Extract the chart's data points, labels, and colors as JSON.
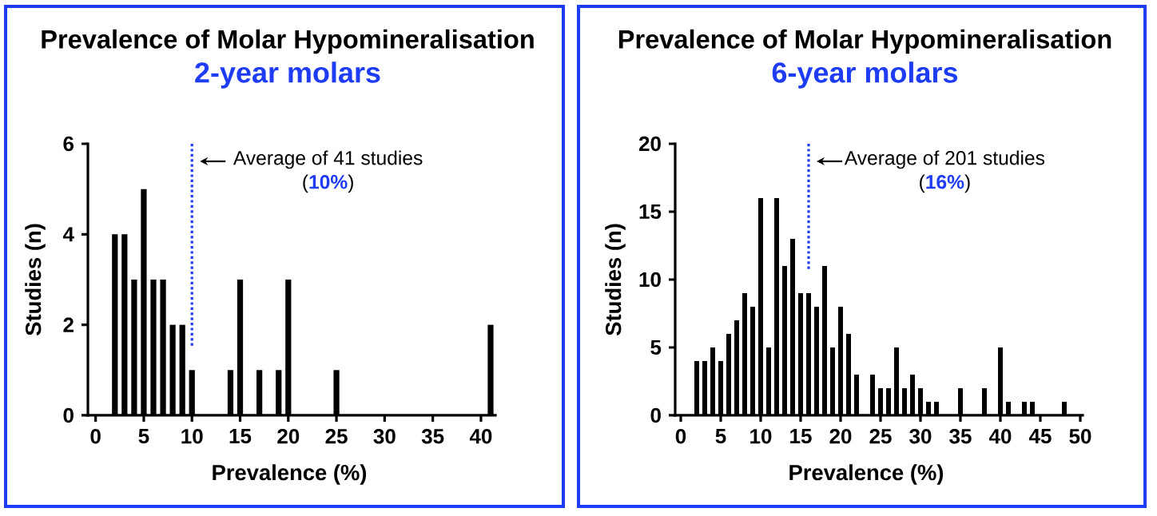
{
  "chart_data": [
    {
      "type": "bar",
      "title": "Prevalence of Molar Hypomineralisation",
      "subtitle": "2-year molars",
      "xlabel": "Prevalence (%)",
      "ylabel": "Studies (n)",
      "x": [
        2,
        3,
        4,
        5,
        6,
        7,
        8,
        9,
        10,
        14,
        15,
        17,
        19,
        20,
        25,
        41
      ],
      "values": [
        4,
        4,
        3,
        5,
        3,
        3,
        2,
        2,
        1,
        1,
        3,
        1,
        1,
        3,
        1,
        2
      ],
      "color": "#000000",
      "xlim": [
        -0.8,
        41.5
      ],
      "xticks": [
        0,
        5,
        10,
        15,
        20,
        25,
        30,
        35,
        40
      ],
      "ylim": [
        0,
        6
      ],
      "yticks": [
        0,
        2,
        4,
        6
      ],
      "ref_lines": [
        {
          "axis": "x",
          "value": 10,
          "label": "Average of 41 studies (**10%**)",
          "color": "#1f3cf5",
          "line_style": "dotted"
        }
      ]
    },
    {
      "type": "bar",
      "title": "Prevalence of Molar Hypomineralisation",
      "subtitle": "6-year molars",
      "xlabel": "Prevalence (%)",
      "ylabel": "Studies (n)",
      "x": [
        2,
        3,
        4,
        5,
        6,
        7,
        8,
        9,
        10,
        11,
        12,
        13,
        14,
        15,
        16,
        17,
        18,
        19,
        20,
        21,
        22,
        24,
        25,
        26,
        27,
        28,
        29,
        30,
        31,
        32,
        35,
        38,
        40,
        41,
        43,
        44,
        48
      ],
      "values": [
        4,
        4,
        5,
        4,
        6,
        7,
        9,
        8,
        16,
        5,
        16,
        11,
        13,
        9,
        9,
        8,
        11,
        5,
        8,
        6,
        3,
        3,
        2,
        2,
        5,
        2,
        3,
        2,
        1,
        1,
        2,
        2,
        5,
        1,
        1,
        1,
        1
      ],
      "color": "#000000",
      "xlim": [
        -0.7,
        50.3
      ],
      "xticks": [
        0,
        5,
        10,
        15,
        20,
        25,
        30,
        35,
        40,
        45,
        50
      ],
      "ylim": [
        0,
        20
      ],
      "yticks": [
        0,
        5,
        10,
        15,
        20
      ],
      "ref_lines": [
        {
          "axis": "x",
          "value": 16,
          "label": "Average of 201 studies (**16%**)",
          "color": "#1f3cf5",
          "line_style": "dotted"
        }
      ]
    }
  ]
}
